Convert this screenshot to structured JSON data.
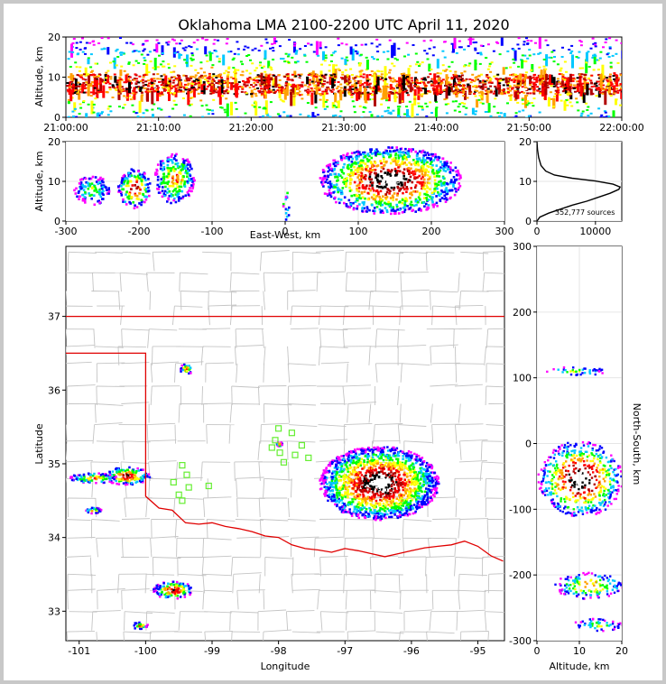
{
  "chart_data": [
    {
      "type": "heatmap",
      "panel": "altitude-vs-time",
      "title": "Oklahoma LMA 2100-2200 UTC April 11, 2020",
      "ylabel": "Altitude, km",
      "xlabel": "",
      "xticks": [
        "21:00:00",
        "21:10:00",
        "21:20:00",
        "21:30:00",
        "21:40:00",
        "21:50:00",
        "22:00:00"
      ],
      "yticks": [
        "0",
        "10",
        "20"
      ],
      "xlim": [
        "21:00:00",
        "22:00:00"
      ],
      "ylim": [
        0,
        20
      ],
      "core_altitude_km": [
        6,
        11
      ]
    },
    {
      "type": "heatmap",
      "panel": "altitude-vs-east-west",
      "xlabel": "East-West, km",
      "ylabel": "Altitude, km",
      "xticks": [
        "-300",
        "-200",
        "-100",
        "0",
        "100",
        "200",
        "300"
      ],
      "yticks": [
        "0",
        "10",
        "20"
      ],
      "xlim": [
        -300,
        300
      ],
      "ylim": [
        0,
        20
      ],
      "clusters": [
        {
          "x": [
            -290,
            -240
          ],
          "alt": [
            4,
            12
          ],
          "level": 2
        },
        {
          "x": [
            -230,
            -185
          ],
          "alt": [
            3,
            14
          ],
          "level": 4
        },
        {
          "x": [
            -180,
            -125
          ],
          "alt": [
            4,
            18
          ],
          "level": 3
        },
        {
          "x": [
            45,
            240
          ],
          "alt": [
            1,
            20
          ],
          "level": 5
        }
      ]
    },
    {
      "type": "line",
      "panel": "altitude-histogram",
      "annotation": "352,777 sources",
      "xticks": [
        "0",
        "10000"
      ],
      "yticks": [
        "0",
        "10",
        "20"
      ],
      "xlim": [
        0,
        14500
      ],
      "ylim": [
        0,
        20
      ],
      "points": [
        [
          0,
          0
        ],
        [
          500,
          1
        ],
        [
          2000,
          2
        ],
        [
          4000,
          3
        ],
        [
          6000,
          4
        ],
        [
          8500,
          5
        ],
        [
          10500,
          6
        ],
        [
          12500,
          7
        ],
        [
          14000,
          8
        ],
        [
          14200,
          8.6
        ],
        [
          13000,
          9.3
        ],
        [
          10000,
          10.1
        ],
        [
          6000,
          10.8
        ],
        [
          3000,
          11.6
        ],
        [
          1500,
          12.6
        ],
        [
          700,
          14
        ],
        [
          300,
          16
        ],
        [
          100,
          18
        ],
        [
          0,
          20
        ]
      ]
    },
    {
      "type": "heatmap",
      "panel": "plan-view-map",
      "xlabel": "Longitude",
      "ylabel": "Latitude",
      "xticks": [
        "-101",
        "-100",
        "-99",
        "-98",
        "-97",
        "-96",
        "-95"
      ],
      "yticks": [
        "33",
        "34",
        "35",
        "36",
        "37"
      ],
      "xlim": [
        -101.2,
        -94.6
      ],
      "ylim": [
        32.6,
        37.95
      ],
      "storms": [
        {
          "lon": -96.5,
          "lat": 34.75,
          "rx": 0.9,
          "ry": 0.5,
          "level": 5
        },
        {
          "lon": -100.3,
          "lat": 34.85,
          "rx": 0.35,
          "ry": 0.12,
          "level": 4
        },
        {
          "lon": -100.8,
          "lat": 34.82,
          "rx": 0.35,
          "ry": 0.07,
          "level": 3
        },
        {
          "lon": -99.6,
          "lat": 33.3,
          "rx": 0.3,
          "ry": 0.12,
          "level": 4
        },
        {
          "lon": -100.1,
          "lat": 32.82,
          "rx": 0.12,
          "ry": 0.05,
          "level": 3
        },
        {
          "lon": -100.8,
          "lat": 34.38,
          "rx": 0.12,
          "ry": 0.04,
          "level": 3
        },
        {
          "lon": -99.4,
          "lat": 36.3,
          "rx": 0.1,
          "ry": 0.07,
          "level": 3
        },
        {
          "lon": -98.0,
          "lat": 35.28,
          "rx": 0.04,
          "ry": 0.03,
          "level": 3
        }
      ],
      "stations": [
        [
          -98.0,
          35.48
        ],
        [
          -98.05,
          35.32
        ],
        [
          -98.1,
          35.22
        ],
        [
          -97.98,
          35.15
        ],
        [
          -97.92,
          35.02
        ],
        [
          -97.8,
          35.42
        ],
        [
          -97.75,
          35.12
        ],
        [
          -97.65,
          35.25
        ],
        [
          -97.55,
          35.08
        ],
        [
          -99.45,
          34.98
        ],
        [
          -99.38,
          34.85
        ],
        [
          -99.35,
          34.68
        ],
        [
          -99.5,
          34.58
        ],
        [
          -99.58,
          34.75
        ],
        [
          -99.45,
          34.5
        ],
        [
          -99.05,
          34.7
        ]
      ]
    },
    {
      "type": "heatmap",
      "panel": "north-south-vs-altitude",
      "xlabel": "Altitude, km",
      "ylabel": "North-South, km",
      "xticks": [
        "0",
        "10",
        "20"
      ],
      "yticks": [
        "-300",
        "-200",
        "-100",
        "0",
        "100",
        "200",
        "300"
      ],
      "xlim": [
        0,
        20
      ],
      "ylim": [
        -300,
        300
      ],
      "clusters": [
        {
          "ns": [
            -110,
            5
          ],
          "alt": [
            0,
            20
          ],
          "level": 5
        },
        {
          "ns": [
            105,
            118
          ],
          "alt": [
            2,
            16
          ],
          "level": 2
        },
        {
          "ns": [
            -235,
            -195
          ],
          "alt": [
            4,
            20
          ],
          "level": 3
        },
        {
          "ns": [
            -285,
            -265
          ],
          "alt": [
            8,
            20
          ],
          "level": 2
        }
      ]
    }
  ]
}
